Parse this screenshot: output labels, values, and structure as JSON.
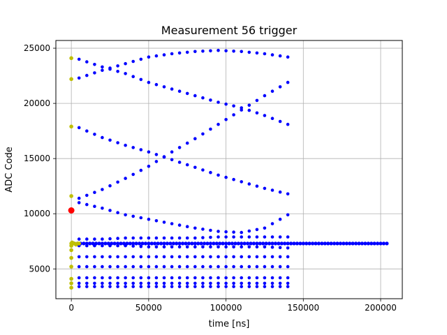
{
  "chart_data": {
    "type": "scatter",
    "title": "Measurement 56 trigger",
    "xlabel": "time [ns]",
    "ylabel": "ADC Code",
    "xlim": [
      -10000,
      214000
    ],
    "ylim": [
      2300,
      25700
    ],
    "xticks": [
      0,
      50000,
      100000,
      150000,
      200000
    ],
    "xtick_labels": [
      "0",
      "50000",
      "100000",
      "150000",
      "200000"
    ],
    "yticks": [
      5000,
      10000,
      15000,
      20000,
      25000
    ],
    "ytick_labels": [
      "5000",
      "10000",
      "15000",
      "20000",
      "25000"
    ],
    "grid": true,
    "legend": "none",
    "colors": {
      "blue": "#0000ff",
      "olive": "#bfbf00",
      "red": "#ff0000",
      "grid": "#b0b0b0"
    },
    "series": [
      {
        "color": "#0000ff",
        "description_free": true,
        "curves": [
          {
            "x": [
              5000,
              20000,
              35000,
              50000,
              65000,
              80000,
              95000,
              110000,
              125000,
              140000
            ],
            "y": [
              24000,
              23300,
              22700,
              21900,
              21300,
              20700,
              20100,
              19600,
              18900,
              18100
            ]
          },
          {
            "x": [
              5000,
              20000,
              35000,
              50000,
              65000,
              80000,
              95000,
              110000,
              125000,
              140000
            ],
            "y": [
              22300,
              23000,
              23600,
              24200,
              24500,
              24700,
              24800,
              24700,
              24500,
              24200
            ]
          },
          {
            "x": [
              5000,
              20000,
              35000,
              50000,
              65000,
              80000,
              95000,
              110000,
              125000,
              140000
            ],
            "y": [
              17800,
              16900,
              16200,
              15600,
              14900,
              14200,
              13500,
              12900,
              12300,
              11800
            ]
          },
          {
            "x": [
              5000,
              20000,
              35000,
              50000,
              65000,
              80000,
              95000,
              110000,
              125000,
              140000
            ],
            "y": [
              11400,
              12200,
              13200,
              14300,
              15600,
              16800,
              18100,
              19400,
              20700,
              21900
            ]
          },
          {
            "x": [
              5000,
              20000,
              35000,
              50000,
              65000,
              80000,
              95000,
              110000,
              125000,
              140000
            ],
            "y": [
              11000,
              10500,
              9900,
              9500,
              9100,
              8700,
              8400,
              8300,
              8700,
              9900
            ]
          },
          {
            "x": [
              5000,
              20000,
              35000,
              50000,
              65000,
              80000,
              95000,
              110000,
              125000,
              140000
            ],
            "y": [
              7700,
              7700,
              7800,
              7800,
              7800,
              7800,
              7900,
              7900,
              7900,
              7900
            ]
          },
          {
            "x": [
              5000,
              20000,
              35000,
              50000,
              65000,
              80000,
              95000,
              110000,
              125000,
              140000
            ],
            "y": [
              7100,
              7100,
              7100,
              7000,
              7000,
              7000,
              7000,
              7000,
              7000,
              6900
            ]
          },
          {
            "x": [
              5000,
              20000,
              35000,
              50000,
              65000,
              80000,
              95000,
              110000,
              125000,
              140000
            ],
            "y": [
              6100,
              6100,
              6100,
              6100,
              6100,
              6100,
              6100,
              6100,
              6100,
              6100
            ]
          },
          {
            "x": [
              5000,
              20000,
              35000,
              50000,
              65000,
              80000,
              95000,
              110000,
              125000,
              140000
            ],
            "y": [
              5200,
              5200,
              5200,
              5200,
              5200,
              5200,
              5200,
              5200,
              5200,
              5200
            ]
          },
          {
            "x": [
              5000,
              20000,
              35000,
              50000,
              65000,
              80000,
              95000,
              110000,
              125000,
              140000
            ],
            "y": [
              4200,
              4200,
              4200,
              4200,
              4200,
              4200,
              4200,
              4200,
              4200,
              4200
            ]
          },
          {
            "x": [
              5000,
              20000,
              35000,
              50000,
              65000,
              80000,
              95000,
              110000,
              125000,
              140000
            ],
            "y": [
              3700,
              3700,
              3700,
              3700,
              3700,
              3700,
              3700,
              3700,
              3700,
              3700
            ]
          },
          {
            "x": [
              5000,
              20000,
              35000,
              50000,
              65000,
              80000,
              95000,
              110000,
              125000,
              140000
            ],
            "y": [
              3400,
              3400,
              3400,
              3400,
              3400,
              3400,
              3400,
              3400,
              3400,
              3400
            ]
          }
        ],
        "band": {
          "y": 7300,
          "x_start": 0,
          "x_end": 205000
        }
      },
      {
        "color": "#bfbf00",
        "x": [
          0,
          0,
          0,
          0,
          0,
          500,
          1000,
          2000,
          3000,
          4000,
          5000,
          0,
          0,
          0,
          0,
          0,
          0,
          0
        ],
        "y": [
          24100,
          22200,
          17900,
          11600,
          7300,
          7400,
          7300,
          7300,
          7200,
          7300,
          7300,
          7100,
          6700,
          6000,
          5200,
          4100,
          3700,
          3300
        ]
      },
      {
        "color": "#ff0000",
        "x": [
          0
        ],
        "y": [
          10300
        ]
      }
    ]
  }
}
